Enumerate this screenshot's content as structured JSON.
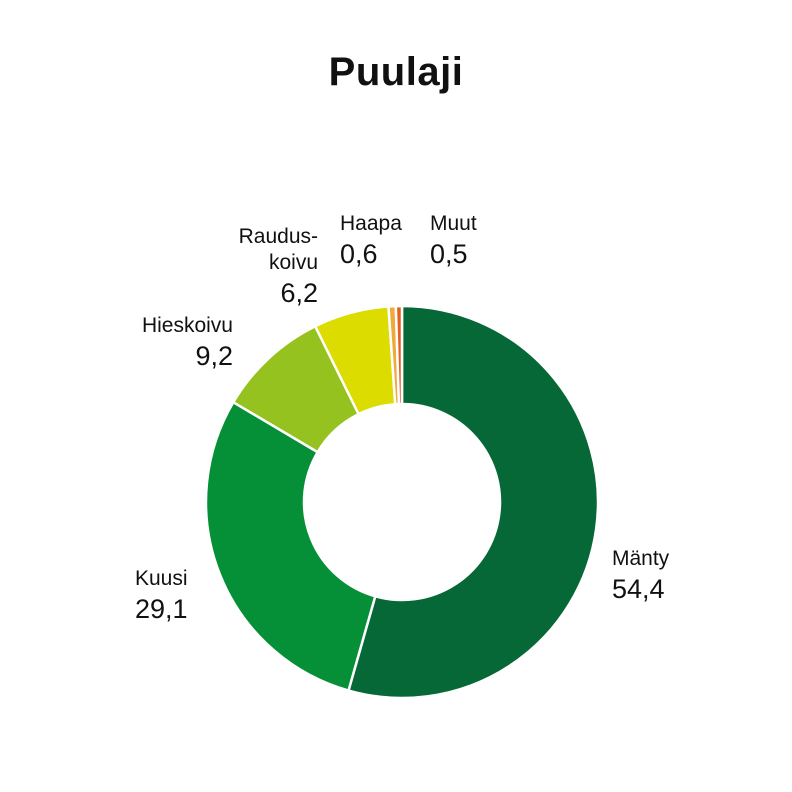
{
  "chart_data": {
    "type": "pie",
    "donut": true,
    "title": "Puulaji",
    "slices": [
      {
        "label": "Mänty",
        "label_lines": [
          "Mänty"
        ],
        "value": 54.4,
        "value_label": "54,4",
        "color": "#066836"
      },
      {
        "label": "Kuusi",
        "label_lines": [
          "Kuusi"
        ],
        "value": 29.1,
        "value_label": "29,1",
        "color": "#058f37"
      },
      {
        "label": "Hieskoivu",
        "label_lines": [
          "Hieskoivu"
        ],
        "value": 9.2,
        "value_label": "9,2",
        "color": "#96c21f"
      },
      {
        "label": "Raudus-koivu",
        "label_lines": [
          "Raudus-",
          "koivu"
        ],
        "value": 6.2,
        "value_label": "6,2",
        "color": "#dcdc00"
      },
      {
        "label": "Haapa",
        "label_lines": [
          "Haapa"
        ],
        "value": 0.6,
        "value_label": "0,6",
        "color": "#f2a93b"
      },
      {
        "label": "Muut",
        "label_lines": [
          "Muut"
        ],
        "value": 0.5,
        "value_label": "0,5",
        "color": "#e0601c"
      }
    ],
    "legend": "none"
  }
}
